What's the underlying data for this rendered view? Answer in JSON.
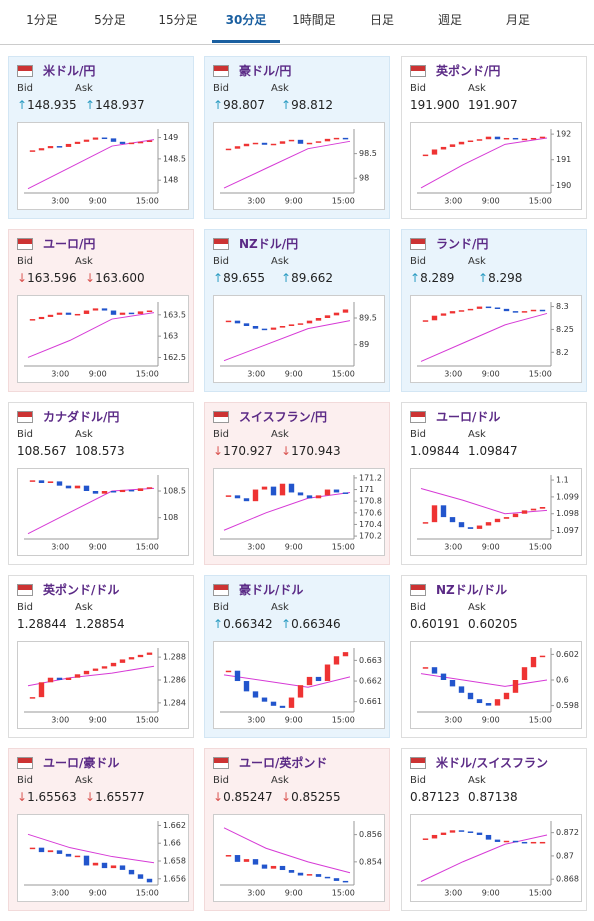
{
  "tabs": {
    "items": [
      "1分足",
      "5分足",
      "15分足",
      "30分足",
      "1時間足",
      "日足",
      "週足",
      "月足"
    ],
    "active": 3
  },
  "bid_label": "Bid",
  "ask_label": "Ask",
  "time_labels": [
    "3:00",
    "9:00",
    "15:00"
  ],
  "cards": [
    {
      "pair": "米ドル/円",
      "trend": "up",
      "bid": "148.935",
      "ask": "148.937",
      "ylim": [
        147.7,
        149.2
      ],
      "yticks": [
        149,
        148.5,
        148
      ],
      "closes": [
        148.7,
        148.75,
        148.8,
        148.78,
        148.85,
        148.9,
        148.95,
        149.0,
        148.98,
        148.9,
        148.85,
        148.88,
        148.9,
        148.93
      ],
      "ma": [
        147.8,
        148.3,
        148.8,
        148.95
      ]
    },
    {
      "pair": "豪ドル/円",
      "trend": "up",
      "bid": "98.807",
      "ask": "98.812",
      "ylim": [
        97.7,
        99
      ],
      "yticks": [
        98.5,
        98
      ],
      "closes": [
        98.6,
        98.65,
        98.7,
        98.72,
        98.68,
        98.7,
        98.75,
        98.78,
        98.7,
        98.72,
        98.75,
        98.8,
        98.82,
        98.8
      ],
      "ma": [
        97.8,
        98.2,
        98.6,
        98.75
      ]
    },
    {
      "pair": "英ポンド/円",
      "trend": "flat",
      "bid": "191.900",
      "ask": "191.907",
      "ylim": [
        189.7,
        192.2
      ],
      "yticks": [
        192,
        191,
        190
      ],
      "closes": [
        191.2,
        191.4,
        191.5,
        191.6,
        191.7,
        191.75,
        191.8,
        191.9,
        191.8,
        191.85,
        191.8,
        191.82,
        191.85,
        191.9
      ],
      "ma": [
        189.9,
        190.8,
        191.6,
        191.85
      ]
    },
    {
      "pair": "ユーロ/円",
      "trend": "down",
      "bid": "163.596",
      "ask": "163.600",
      "ylim": [
        162.3,
        163.8
      ],
      "yticks": [
        163.5,
        163,
        162.5
      ],
      "closes": [
        163.4,
        163.45,
        163.5,
        163.55,
        163.5,
        163.52,
        163.6,
        163.65,
        163.6,
        163.5,
        163.55,
        163.52,
        163.58,
        163.6
      ],
      "ma": [
        162.5,
        162.9,
        163.4,
        163.55
      ]
    },
    {
      "pair": "NZドル/円",
      "trend": "up",
      "bid": "89.655",
      "ask": "89.662",
      "ylim": [
        88.6,
        89.8
      ],
      "yticks": [
        89.5,
        89
      ],
      "closes": [
        89.45,
        89.4,
        89.35,
        89.3,
        89.28,
        89.32,
        89.35,
        89.38,
        89.4,
        89.45,
        89.5,
        89.55,
        89.6,
        89.66
      ],
      "ma": [
        88.7,
        89.0,
        89.3,
        89.45
      ]
    },
    {
      "pair": "ランド/円",
      "trend": "up",
      "bid": "8.289",
      "ask": "8.298",
      "ylim": [
        8.17,
        8.31
      ],
      "yticks": [
        8.3,
        8.25,
        8.2
      ],
      "closes": [
        8.27,
        8.28,
        8.285,
        8.29,
        8.292,
        8.295,
        8.3,
        8.298,
        8.295,
        8.29,
        8.288,
        8.29,
        8.293,
        8.29
      ],
      "ma": [
        8.18,
        8.22,
        8.26,
        8.285
      ]
    },
    {
      "pair": "カナダドル/円",
      "trend": "flat",
      "bid": "108.567",
      "ask": "108.573",
      "ylim": [
        107.6,
        108.8
      ],
      "yticks": [
        108.5,
        108
      ],
      "closes": [
        108.7,
        108.65,
        108.68,
        108.6,
        108.55,
        108.6,
        108.5,
        108.45,
        108.5,
        108.48,
        108.52,
        108.5,
        108.55,
        108.57
      ],
      "ma": [
        107.7,
        108.1,
        108.5,
        108.55
      ]
    },
    {
      "pair": "スイスフラン/円",
      "trend": "down",
      "bid": "170.927",
      "ask": "170.943",
      "ylim": [
        170.15,
        171.25
      ],
      "yticks": [
        171.2,
        171,
        170.8,
        170.6,
        170.4,
        170.2
      ],
      "closes": [
        170.9,
        170.85,
        170.8,
        171.0,
        171.05,
        170.9,
        171.1,
        170.95,
        170.9,
        170.85,
        170.9,
        171.0,
        170.95,
        170.93
      ],
      "ma": [
        170.3,
        170.6,
        170.85,
        170.95
      ]
    },
    {
      "pair": "ユーロ/ドル",
      "trend": "flat",
      "bid": "1.09844",
      "ask": "1.09847",
      "ylim": [
        1.0965,
        1.1003
      ],
      "yticks": [
        1.1,
        1.099,
        1.098,
        1.097
      ],
      "closes": [
        1.0975,
        1.0985,
        1.0978,
        1.0975,
        1.0972,
        1.0971,
        1.0973,
        1.0975,
        1.0977,
        1.0978,
        1.098,
        1.0982,
        1.0983,
        1.0984
      ],
      "ma": [
        1.0995,
        1.0988,
        1.098,
        1.0982
      ]
    },
    {
      "pair": "英ポンド/ドル",
      "trend": "flat",
      "bid": "1.28844",
      "ask": "1.28854",
      "ylim": [
        1.2832,
        1.2888
      ],
      "yticks": [
        1.288,
        1.286,
        1.284
      ],
      "closes": [
        1.2845,
        1.2858,
        1.2862,
        1.286,
        1.2862,
        1.2865,
        1.2868,
        1.287,
        1.2872,
        1.2875,
        1.2878,
        1.288,
        1.2882,
        1.2884
      ],
      "ma": [
        1.2855,
        1.2862,
        1.2866,
        1.2872
      ]
    },
    {
      "pair": "豪ドル/ドル",
      "trend": "up",
      "bid": "0.66342",
      "ask": "0.66346",
      "ylim": [
        0.6605,
        0.6636
      ],
      "yticks": [
        0.663,
        0.662,
        0.661
      ],
      "closes": [
        0.6625,
        0.662,
        0.6615,
        0.6612,
        0.661,
        0.6608,
        0.6607,
        0.6612,
        0.6618,
        0.6622,
        0.662,
        0.6628,
        0.6632,
        0.6634
      ],
      "ma": [
        0.6623,
        0.662,
        0.6617,
        0.6622
      ]
    },
    {
      "pair": "NZドル/ドル",
      "trend": "flat",
      "bid": "0.60191",
      "ask": "0.60205",
      "ylim": [
        0.5975,
        0.6025
      ],
      "yticks": [
        0.602,
        0.6,
        0.598
      ],
      "closes": [
        0.601,
        0.6005,
        0.6,
        0.5995,
        0.599,
        0.5985,
        0.5982,
        0.598,
        0.5985,
        0.599,
        0.6,
        0.601,
        0.6018,
        0.6019
      ],
      "ma": [
        0.6005,
        0.6,
        0.5995,
        0.6
      ]
    },
    {
      "pair": "ユーロ/豪ドル",
      "trend": "down",
      "bid": "1.65563",
      "ask": "1.65577",
      "ylim": [
        1.6553,
        1.6625
      ],
      "yticks": [
        1.662,
        1.66,
        1.658,
        1.656
      ],
      "closes": [
        1.6595,
        1.659,
        1.6592,
        1.6588,
        1.6585,
        1.6586,
        1.6575,
        1.6578,
        1.6572,
        1.6575,
        1.657,
        1.6565,
        1.656,
        1.6556
      ],
      "ma": [
        1.661,
        1.6595,
        1.6585,
        1.6578
      ]
    },
    {
      "pair": "ユーロ/英ポンド",
      "trend": "down",
      "bid": "0.85247",
      "ask": "0.85255",
      "ylim": [
        0.8523,
        0.857
      ],
      "yticks": [
        0.856,
        0.854
      ],
      "closes": [
        0.8545,
        0.854,
        0.8542,
        0.8538,
        0.8535,
        0.8537,
        0.8534,
        0.8532,
        0.853,
        0.8531,
        0.8529,
        0.8528,
        0.8526,
        0.8525
      ],
      "ma": [
        0.8565,
        0.855,
        0.854,
        0.8532
      ]
    },
    {
      "pair": "米ドル/スイスフラン",
      "trend": "flat",
      "bid": "0.87123",
      "ask": "0.87138",
      "ylim": [
        0.8675,
        0.873
      ],
      "yticks": [
        0.872,
        0.87,
        0.868
      ],
      "closes": [
        0.8715,
        0.8718,
        0.872,
        0.8722,
        0.8721,
        0.872,
        0.8718,
        0.8714,
        0.8712,
        0.8713,
        0.8712,
        0.8711,
        0.8712,
        0.8712
      ],
      "ma": [
        0.8678,
        0.8695,
        0.871,
        0.8718
      ]
    }
  ]
}
